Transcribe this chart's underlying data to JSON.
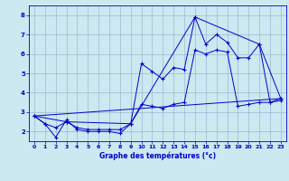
{
  "xlabel": "Graphe des températures (°c)",
  "xlim": [
    -0.5,
    23.5
  ],
  "ylim": [
    1.5,
    8.5
  ],
  "yticks": [
    2,
    3,
    4,
    5,
    6,
    7,
    8
  ],
  "xticks": [
    0,
    1,
    2,
    3,
    4,
    5,
    6,
    7,
    8,
    9,
    10,
    11,
    12,
    13,
    14,
    15,
    16,
    17,
    18,
    19,
    20,
    21,
    22,
    23
  ],
  "background_color": "#cce8f0",
  "grid_color": "#99aacc",
  "line_color": "#0000cc",
  "lines": [
    {
      "x": [
        0,
        1,
        2,
        3,
        4,
        5,
        6,
        7,
        8,
        9,
        10,
        11,
        12,
        13,
        14,
        15,
        16,
        17,
        18,
        19,
        20,
        21,
        22,
        23
      ],
      "y": [
        2.8,
        2.4,
        1.7,
        2.6,
        2.1,
        2.0,
        2.0,
        2.0,
        1.9,
        2.4,
        5.5,
        5.1,
        4.7,
        5.3,
        5.2,
        7.9,
        6.5,
        7.0,
        6.6,
        5.8,
        5.8,
        6.5,
        3.5,
        3.7
      ],
      "marker": "+"
    },
    {
      "x": [
        0,
        1,
        2,
        3,
        4,
        5,
        6,
        7,
        8,
        9,
        10,
        11,
        12,
        13,
        14,
        15,
        16,
        17,
        18,
        19,
        20,
        21,
        22,
        23
      ],
      "y": [
        2.8,
        2.4,
        2.2,
        2.5,
        2.2,
        2.1,
        2.1,
        2.1,
        2.1,
        2.4,
        3.4,
        3.3,
        3.2,
        3.4,
        3.5,
        6.2,
        6.0,
        6.2,
        6.1,
        3.3,
        3.4,
        3.5,
        3.5,
        3.6
      ],
      "marker": "+"
    },
    {
      "x": [
        0,
        3,
        9,
        15,
        21,
        23
      ],
      "y": [
        2.8,
        2.5,
        2.4,
        7.9,
        6.5,
        3.7
      ],
      "marker": "+"
    },
    {
      "x": [
        0,
        23
      ],
      "y": [
        2.8,
        3.7
      ],
      "marker": null
    }
  ]
}
